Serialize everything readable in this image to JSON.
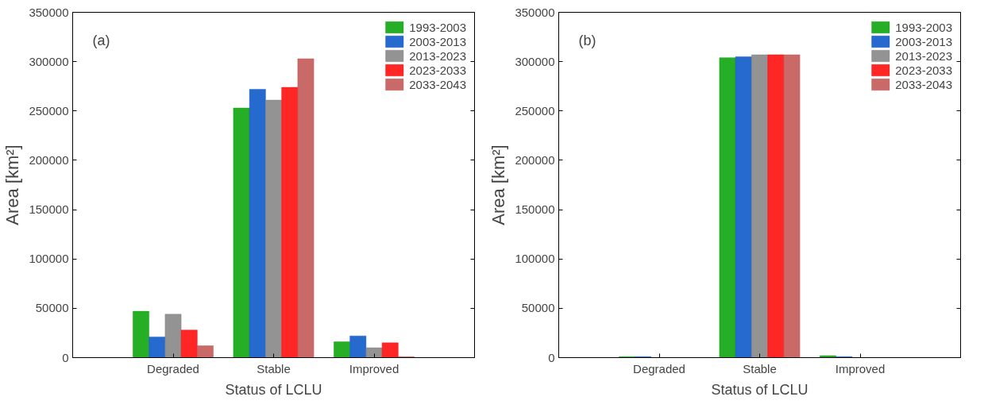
{
  "chart_data": [
    {
      "type": "bar",
      "categories": [
        "Degraded",
        "Stable",
        "Improved"
      ],
      "xlabel": "Status of LCLU",
      "ylabel": "Area [km²]",
      "annotations": [
        "(a)"
      ],
      "ylim": [
        0,
        350000
      ],
      "yticks": [
        0,
        50000,
        100000,
        150000,
        200000,
        250000,
        300000,
        350000
      ],
      "grid": false,
      "legend": "top right",
      "series": [
        {
          "name": "1993-2003",
          "color": "#00a000",
          "values": [
            47000,
            253000,
            16000
          ]
        },
        {
          "name": "2003-2013",
          "color": "#0050c8",
          "values": [
            21000,
            272000,
            22000
          ]
        },
        {
          "name": "2013-2023",
          "color": "#808080",
          "values": [
            44000,
            261000,
            10000
          ]
        },
        {
          "name": "2023-2033",
          "color": "#ff0000",
          "values": [
            28000,
            274000,
            15000
          ]
        },
        {
          "name": "2033-2043",
          "color": "#c0504d",
          "values": [
            12000,
            303000,
            1000
          ]
        }
      ]
    },
    {
      "type": "bar",
      "categories": [
        "Degraded",
        "Stable",
        "Improved"
      ],
      "xlabel": "Status of LCLU",
      "ylabel": "Area [km²]",
      "annotations": [
        "(b)"
      ],
      "ylim": [
        0,
        350000
      ],
      "yticks": [
        0,
        50000,
        100000,
        150000,
        200000,
        250000,
        300000,
        350000
      ],
      "grid": false,
      "legend": "top right",
      "series": [
        {
          "name": "1993-2003",
          "color": "#00a000",
          "values": [
            1000,
            304000,
            2000
          ]
        },
        {
          "name": "2003-2013",
          "color": "#0050c8",
          "values": [
            1000,
            305000,
            1000
          ]
        },
        {
          "name": "2013-2023",
          "color": "#808080",
          "values": [
            0,
            307000,
            0
          ]
        },
        {
          "name": "2023-2033",
          "color": "#ff0000",
          "values": [
            0,
            307000,
            0
          ]
        },
        {
          "name": "2033-2043",
          "color": "#c0504d",
          "values": [
            0,
            307000,
            0
          ]
        }
      ]
    }
  ]
}
